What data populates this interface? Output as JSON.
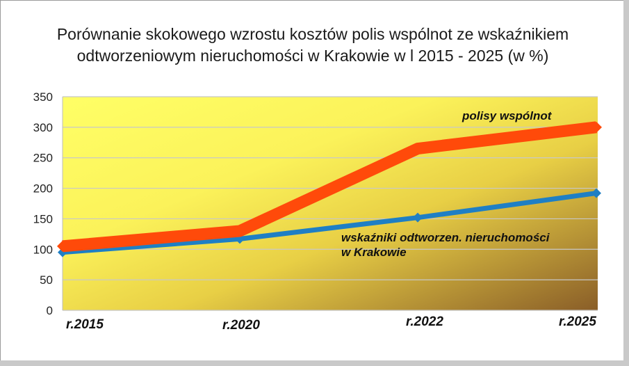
{
  "chart_data": {
    "type": "line",
    "title_lines": [
      "Porównanie skokowego wzrostu kosztów polis wspólnot ze wskaźnikiem",
      "odtworzeniowym nieruchomości w Krakowie w l 2015 - 2025 (w %)"
    ],
    "categories": [
      "r.2015",
      "r.2020",
      "r.2022",
      "r.2025"
    ],
    "ylim": [
      0,
      350
    ],
    "yticks": [
      0,
      50,
      100,
      150,
      200,
      250,
      300,
      350
    ],
    "grid": true,
    "series": [
      {
        "name": "polisy wspólnot",
        "values": [
          105,
          130,
          265,
          300
        ],
        "color": "#ff4a0a"
      },
      {
        "name": "wskaźniki odtworzen. nieruchomości w Krakowie",
        "name_lines": [
          "wskaźniki odtworzen. nieruchomości",
          "w Krakowie"
        ],
        "values": [
          95,
          117,
          152,
          192
        ],
        "color": "#1f7fc4"
      }
    ],
    "background_gradient": [
      "#ffff66",
      "#e0c23a",
      "#8a5e28"
    ]
  }
}
